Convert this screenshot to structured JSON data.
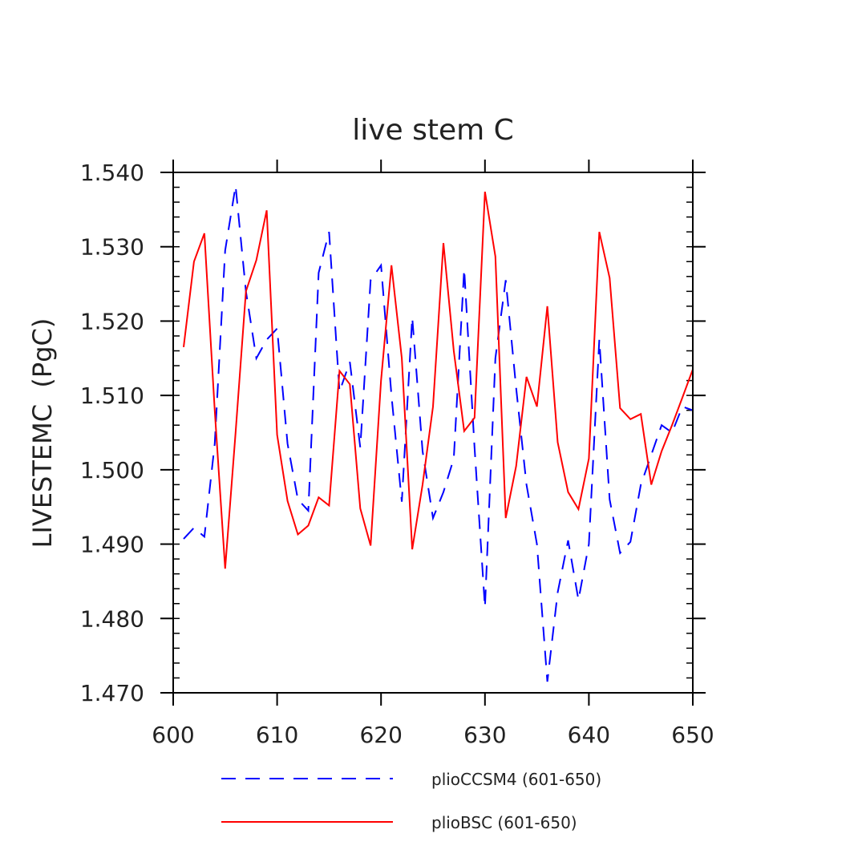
{
  "chart_data": {
    "type": "line",
    "title": "live stem C",
    "xlabel": "",
    "ylabel": "LIVESTEMC  (PgC)",
    "xlim": [
      600,
      650
    ],
    "ylim": [
      1.47,
      1.54
    ],
    "xticks": [
      600,
      610,
      620,
      630,
      640,
      650
    ],
    "xtick_labels": [
      "600",
      "610",
      "620",
      "630",
      "640",
      "650"
    ],
    "yticks": [
      1.47,
      1.48,
      1.49,
      1.5,
      1.51,
      1.52,
      1.53,
      1.54
    ],
    "ytick_labels": [
      "1.470",
      "1.480",
      "1.490",
      "1.500",
      "1.510",
      "1.520",
      "1.530",
      "1.540"
    ],
    "grid": false,
    "legend_position": "bottom",
    "x": [
      601,
      602,
      603,
      604,
      605,
      606,
      607,
      608,
      609,
      610,
      611,
      612,
      613,
      614,
      615,
      616,
      617,
      618,
      619,
      620,
      621,
      622,
      623,
      624,
      625,
      626,
      627,
      628,
      629,
      630,
      631,
      632,
      633,
      634,
      635,
      636,
      637,
      638,
      639,
      640,
      641,
      642,
      643,
      644,
      645,
      646,
      647,
      648,
      649,
      650
    ],
    "series": [
      {
        "name": "plioCCSM4 (601-650)",
        "color": "#0000ff",
        "dash": "dashed",
        "values": [
          1.4907,
          1.4922,
          1.491,
          1.5035,
          1.5295,
          1.5382,
          1.524,
          1.515,
          1.5175,
          1.519,
          1.5035,
          1.496,
          1.4945,
          1.5265,
          1.532,
          1.5105,
          1.5145,
          1.503,
          1.5255,
          1.5275,
          1.51,
          1.4957,
          1.5205,
          1.5025,
          1.4935,
          1.497,
          1.5015,
          1.527,
          1.503,
          1.4815,
          1.515,
          1.5255,
          1.511,
          1.498,
          1.49,
          1.4715,
          1.4835,
          1.4905,
          1.4825,
          1.49,
          1.5175,
          1.496,
          1.4888,
          1.4903,
          1.498,
          1.502,
          1.506,
          1.505,
          1.5085,
          1.508
        ]
      },
      {
        "name": "plioBSC (601-650)",
        "color": "#ff0000",
        "dash": "solid",
        "values": [
          1.5165,
          1.528,
          1.5318,
          1.508,
          1.4867,
          1.505,
          1.524,
          1.5282,
          1.5349,
          1.5047,
          1.4958,
          1.4913,
          1.4925,
          1.4963,
          1.4952,
          1.5133,
          1.5115,
          1.4948,
          1.4898,
          1.512,
          1.5275,
          1.515,
          1.4893,
          1.498,
          1.5085,
          1.5305,
          1.516,
          1.5052,
          1.507,
          1.5374,
          1.5287,
          1.4935,
          1.5005,
          1.5125,
          1.5085,
          1.522,
          1.5037,
          1.497,
          1.4947,
          1.5015,
          1.532,
          1.5258,
          1.5083,
          1.5068,
          1.5075,
          1.498,
          1.5025,
          1.506,
          1.5097,
          1.5135
        ]
      }
    ]
  }
}
